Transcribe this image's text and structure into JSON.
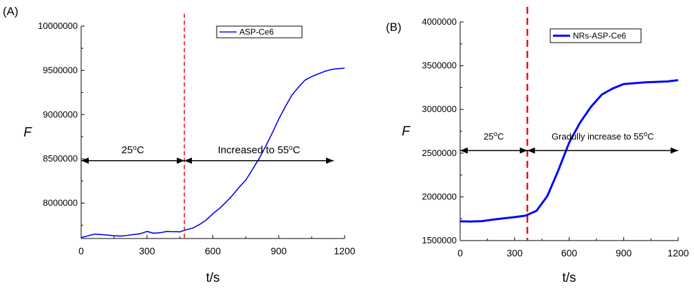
{
  "chart_data": [
    {
      "type": "line",
      "panel_label": "(A)",
      "xlabel": "t/s",
      "ylabel": "F",
      "xlim": [
        0,
        1200
      ],
      "ylim": [
        7600000,
        10000000
      ],
      "xticks": [
        0,
        300,
        600,
        900,
        1200
      ],
      "yticks": [
        8000000,
        8500000,
        9000000,
        9500000,
        10000000
      ],
      "ytick_labels": [
        "8000000",
        "8500000",
        "9000000",
        "9500000",
        "10000000"
      ],
      "grid": false,
      "legend_position": "top-right",
      "series": [
        {
          "name": "ASP-Ce6",
          "color": "#0000ff",
          "x": [
            0,
            30,
            60,
            90,
            120,
            150,
            180,
            210,
            240,
            270,
            300,
            330,
            360,
            390,
            420,
            450,
            480,
            510,
            540,
            570,
            600,
            630,
            660,
            690,
            720,
            750,
            780,
            810,
            840,
            870,
            900,
            930,
            960,
            990,
            1020,
            1050,
            1080,
            1110,
            1140,
            1170,
            1200
          ],
          "y": [
            7610000,
            7630000,
            7650000,
            7645000,
            7638000,
            7632000,
            7628000,
            7635000,
            7645000,
            7655000,
            7680000,
            7660000,
            7665000,
            7680000,
            7678000,
            7675000,
            7700000,
            7720000,
            7760000,
            7810000,
            7880000,
            7940000,
            8010000,
            8090000,
            8180000,
            8260000,
            8380000,
            8500000,
            8640000,
            8790000,
            8950000,
            9090000,
            9220000,
            9310000,
            9390000,
            9430000,
            9460000,
            9490000,
            9510000,
            9520000,
            9525000
          ]
        }
      ],
      "vline": {
        "x": 470,
        "color": "#ff0000",
        "style": "dashed"
      },
      "annotations": [
        {
          "base": "25",
          "sup": "o",
          "tail": "C",
          "x_from": 0,
          "x_to": 470,
          "y": 8480000
        },
        {
          "base": "Increased to 55",
          "sup": "o",
          "tail": "C",
          "x_from": 470,
          "x_to": 1150,
          "y": 8480000
        }
      ]
    },
    {
      "type": "line",
      "panel_label": "(B)",
      "xlabel": "t/s",
      "ylabel": "F",
      "xlim": [
        0,
        1200
      ],
      "ylim": [
        1500000,
        4000000
      ],
      "xticks": [
        0,
        300,
        600,
        900,
        1200
      ],
      "yticks": [
        1500000,
        2000000,
        2500000,
        3000000,
        3500000,
        4000000
      ],
      "ytick_labels": [
        "1500000",
        "2000000",
        "2500000",
        "3000000",
        "3500000",
        "4000000"
      ],
      "grid": false,
      "legend_position": "top-right",
      "series": [
        {
          "name": "NRs-ASP-Ce6",
          "color": "#0000ff",
          "x": [
            0,
            60,
            120,
            180,
            240,
            300,
            360,
            420,
            480,
            540,
            600,
            660,
            720,
            780,
            840,
            900,
            960,
            1020,
            1080,
            1140,
            1200
          ],
          "y": [
            1720000,
            1718000,
            1722000,
            1740000,
            1755000,
            1768000,
            1785000,
            1840000,
            2010000,
            2300000,
            2620000,
            2850000,
            3030000,
            3170000,
            3240000,
            3290000,
            3300000,
            3310000,
            3315000,
            3320000,
            3335000
          ]
        }
      ],
      "vline": {
        "x": 370,
        "color": "#ff0000",
        "style": "dashed"
      },
      "annotations": [
        {
          "base": "25",
          "sup": "o",
          "tail": "C",
          "x_from": 0,
          "x_to": 370,
          "y": 2530000
        },
        {
          "base": "Gradully increase to 55",
          "sup": "o",
          "tail": "C",
          "x_from": 370,
          "x_to": 1200,
          "y": 2530000
        }
      ]
    }
  ]
}
